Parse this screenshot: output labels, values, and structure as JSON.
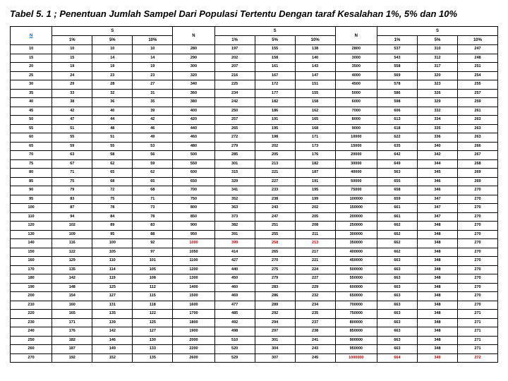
{
  "title": "Tabel 5. 1 ; Penentuan Jumlah Sampel Dari Populasi Tertentu Dengan taraf Kesalahan 1%, 5% dan 10%",
  "header_n": "N",
  "header_s": "S",
  "percents": [
    "1%",
    "5%",
    "10%"
  ],
  "rows": [
    [
      "10",
      "10",
      "10",
      "10",
      "280",
      "197",
      "155",
      "138",
      "2800",
      "537",
      "310",
      "247"
    ],
    [
      "15",
      "15",
      "14",
      "14",
      "290",
      "202",
      "158",
      "140",
      "3000",
      "543",
      "312",
      "248"
    ],
    [
      "20",
      "19",
      "19",
      "19",
      "300",
      "207",
      "161",
      "143",
      "3500",
      "558",
      "317",
      "251"
    ],
    [
      "25",
      "24",
      "23",
      "23",
      "320",
      "216",
      "167",
      "147",
      "4000",
      "569",
      "320",
      "254"
    ],
    [
      "30",
      "29",
      "28",
      "27",
      "340",
      "225",
      "172",
      "151",
      "4500",
      "578",
      "323",
      "255"
    ],
    [
      "35",
      "33",
      "32",
      "31",
      "360",
      "234",
      "177",
      "155",
      "5000",
      "586",
      "326",
      "257"
    ],
    [
      "40",
      "38",
      "36",
      "35",
      "380",
      "242",
      "182",
      "158",
      "6000",
      "598",
      "329",
      "259"
    ],
    [
      "45",
      "42",
      "40",
      "39",
      "400",
      "250",
      "186",
      "162",
      "7000",
      "606",
      "332",
      "261"
    ],
    [
      "50",
      "47",
      "44",
      "42",
      "420",
      "257",
      "191",
      "165",
      "8000",
      "613",
      "334",
      "263"
    ],
    [
      "55",
      "51",
      "48",
      "46",
      "440",
      "265",
      "195",
      "168",
      "9000",
      "618",
      "335",
      "263"
    ],
    [
      "60",
      "55",
      "51",
      "49",
      "460",
      "272",
      "198",
      "171",
      "10000",
      "622",
      "336",
      "263"
    ],
    [
      "65",
      "59",
      "55",
      "53",
      "480",
      "279",
      "202",
      "173",
      "15000",
      "635",
      "340",
      "266"
    ],
    [
      "70",
      "63",
      "58",
      "56",
      "500",
      "285",
      "205",
      "176",
      "20000",
      "642",
      "342",
      "267"
    ],
    [
      "75",
      "67",
      "62",
      "59",
      "550",
      "301",
      "213",
      "182",
      "30000",
      "649",
      "344",
      "268"
    ],
    [
      "80",
      "71",
      "65",
      "62",
      "600",
      "315",
      "221",
      "187",
      "40000",
      "563",
      "345",
      "269"
    ],
    [
      "85",
      "75",
      "68",
      "65",
      "650",
      "329",
      "227",
      "191",
      "50000",
      "655",
      "346",
      "269"
    ],
    [
      "90",
      "79",
      "72",
      "68",
      "700",
      "341",
      "233",
      "195",
      "75000",
      "658",
      "346",
      "270"
    ],
    [
      "95",
      "83",
      "75",
      "71",
      "750",
      "352",
      "238",
      "199",
      "100000",
      "659",
      "347",
      "270"
    ],
    [
      "100",
      "87",
      "78",
      "73",
      "800",
      "363",
      "243",
      "202",
      "150000",
      "661",
      "347",
      "270"
    ],
    [
      "110",
      "94",
      "84",
      "78",
      "850",
      "373",
      "247",
      "205",
      "200000",
      "661",
      "347",
      "270"
    ],
    [
      "120",
      "102",
      "89",
      "83",
      "900",
      "382",
      "251",
      "208",
      "250000",
      "662",
      "348",
      "270"
    ],
    [
      "130",
      "109",
      "95",
      "88",
      "950",
      "391",
      "255",
      "211",
      "300000",
      "662",
      "348",
      "270"
    ],
    [
      "140",
      "116",
      "100",
      "92",
      "1000",
      "399",
      "258",
      "213",
      "350000",
      "662",
      "348",
      "270"
    ],
    [
      "150",
      "122",
      "105",
      "97",
      "1050",
      "414",
      "265",
      "217",
      "400000",
      "662",
      "348",
      "270"
    ],
    [
      "160",
      "129",
      "110",
      "101",
      "1100",
      "427",
      "270",
      "221",
      "450000",
      "663",
      "348",
      "270"
    ],
    [
      "170",
      "135",
      "114",
      "105",
      "1200",
      "440",
      "275",
      "224",
      "500000",
      "663",
      "348",
      "270"
    ],
    [
      "180",
      "142",
      "119",
      "108",
      "1300",
      "450",
      "279",
      "227",
      "550000",
      "663",
      "348",
      "270"
    ],
    [
      "190",
      "148",
      "125",
      "112",
      "1400",
      "460",
      "283",
      "229",
      "600000",
      "663",
      "348",
      "270"
    ],
    [
      "200",
      "154",
      "127",
      "115",
      "1500",
      "469",
      "286",
      "232",
      "650000",
      "663",
      "348",
      "270"
    ],
    [
      "210",
      "160",
      "131",
      "118",
      "1600",
      "477",
      "289",
      "234",
      "700000",
      "663",
      "348",
      "270"
    ],
    [
      "220",
      "165",
      "135",
      "122",
      "1700",
      "485",
      "292",
      "235",
      "750000",
      "663",
      "348",
      "271"
    ],
    [
      "230",
      "171",
      "139",
      "125",
      "1800",
      "492",
      "294",
      "237",
      "800000",
      "663",
      "348",
      "271"
    ],
    [
      "240",
      "176",
      "142",
      "127",
      "1900",
      "498",
      "297",
      "238",
      "850000",
      "663",
      "348",
      "271"
    ],
    [
      "250",
      "182",
      "146",
      "130",
      "2000",
      "510",
      "301",
      "241",
      "900000",
      "663",
      "348",
      "271"
    ],
    [
      "260",
      "187",
      "149",
      "133",
      "2200",
      "520",
      "304",
      "243",
      "950000",
      "663",
      "348",
      "271"
    ],
    [
      "270",
      "192",
      "152",
      "135",
      "2600",
      "529",
      "307",
      "245",
      "1000000",
      "664",
      "349",
      "272"
    ]
  ],
  "redCells": {
    "22": [
      4,
      5,
      6,
      7
    ],
    "35": [
      8,
      9,
      10,
      11
    ]
  },
  "colors": {
    "link": "#0563c1",
    "red": "#c00000",
    "border": "#000000"
  }
}
